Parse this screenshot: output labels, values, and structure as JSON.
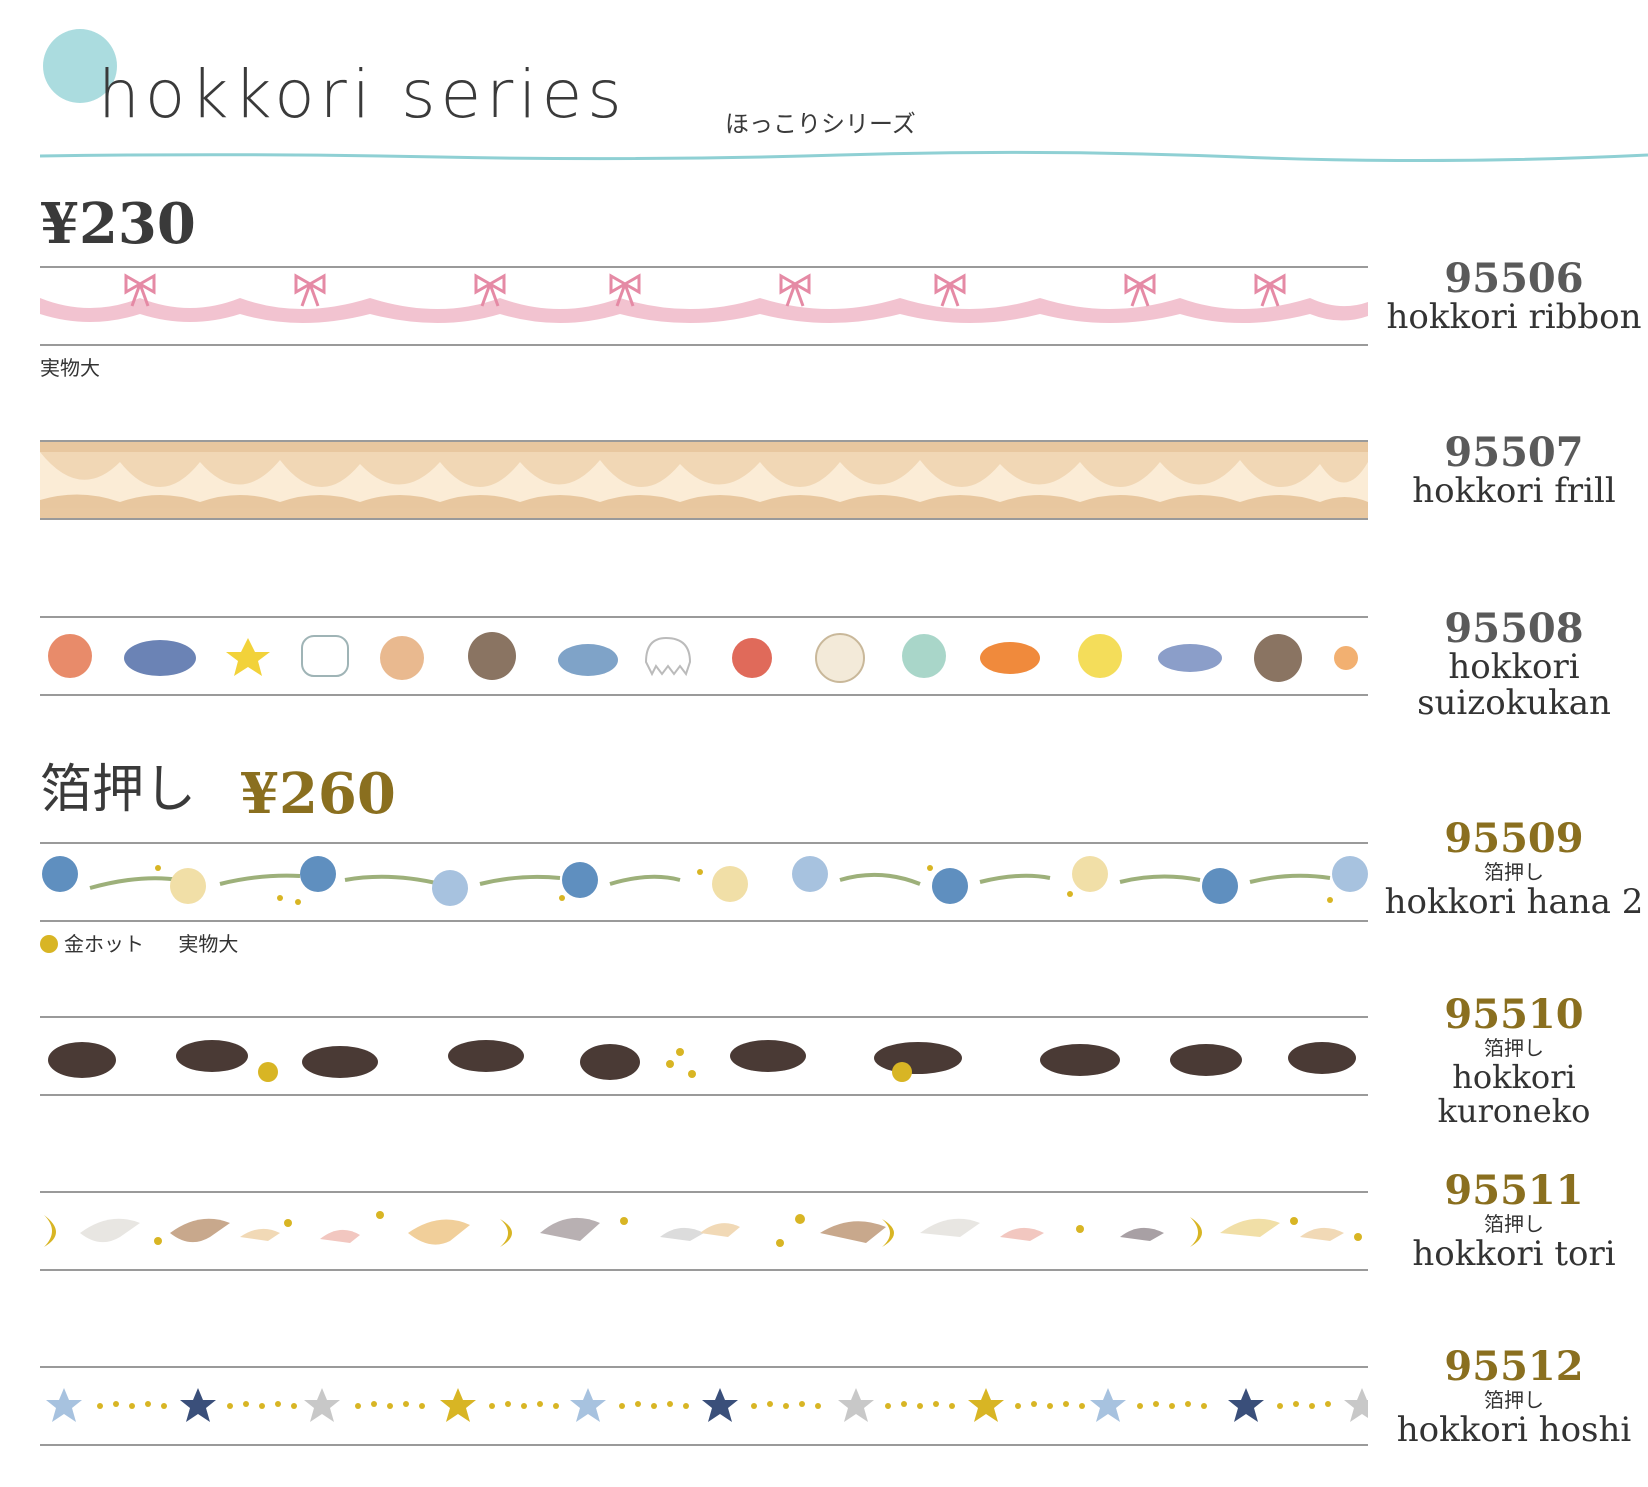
{
  "header": {
    "title": "hokkori series",
    "subtitle": "ほっこりシリーズ",
    "accent_color": "#8fd0d4"
  },
  "sections": {
    "regular": {
      "price": "¥230"
    },
    "foil": {
      "title": "箔押し",
      "price": "¥260"
    }
  },
  "notes": {
    "actual_size_1": "実物大",
    "gold_dot": "金ホット",
    "actual_size_2": "実物大"
  },
  "products": [
    {
      "code": "95506",
      "name": "hokkori ribbon",
      "tag": ""
    },
    {
      "code": "95507",
      "name": "hokkori frill",
      "tag": ""
    },
    {
      "code": "95508",
      "name_line1": "hokkori",
      "name_line2": "suizokukan",
      "tag": ""
    },
    {
      "code": "95509",
      "tag": "箔押し",
      "name": "hokkori hana 2"
    },
    {
      "code": "95510",
      "tag": "箔押し",
      "name": "hokkori kuroneko"
    },
    {
      "code": "95511",
      "tag": "箔押し",
      "name": "hokkori tori"
    },
    {
      "code": "95512",
      "tag": "箔押し",
      "name": "hokkori hoshi"
    }
  ],
  "colors": {
    "gold": "#8a6f1f",
    "ribbon": "#f0b9c8",
    "frill": "#e7c49a",
    "cat": "#4a3a35"
  }
}
